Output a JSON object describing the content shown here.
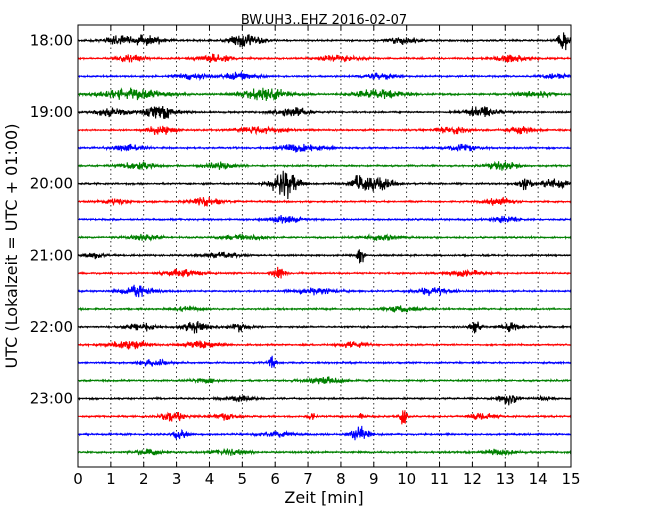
{
  "chart_data": {
    "type": "line",
    "title": "BW.UH3..EHZ 2016-02-07",
    "xlabel": "Zeit  [min]",
    "ylabel": "UTC (Lokalzeit = UTC + 01:00)",
    "xlim": [
      0,
      15
    ],
    "x_ticks": [
      "0",
      "1",
      "2",
      "3",
      "4",
      "5",
      "6",
      "7",
      "8",
      "9",
      "10",
      "11",
      "12",
      "13",
      "14",
      "15"
    ],
    "y_tick_labels": [
      {
        "row": 0,
        "label": "18:00"
      },
      {
        "row": 4,
        "label": "19:00"
      },
      {
        "row": 8,
        "label": "20:00"
      },
      {
        "row": 12,
        "label": "21:00"
      },
      {
        "row": 16,
        "label": "22:00"
      },
      {
        "row": 20,
        "label": "23:00"
      }
    ],
    "grid": "vertical dotted",
    "trace_minutes": 15,
    "colors": [
      "#000000",
      "#ff0000",
      "#0000ff",
      "#008000"
    ],
    "series": [
      {
        "start": "18:00",
        "color_index": 0,
        "bursts": [
          [
            1.2,
            0.8,
            0.4
          ],
          [
            2.1,
            1.0,
            0.5
          ],
          [
            5.1,
            1.2,
            0.5
          ],
          [
            9.9,
            0.8,
            0.4
          ],
          [
            14.8,
            1.8,
            0.2
          ]
        ]
      },
      {
        "start": "18:15",
        "color_index": 1,
        "bursts": [
          [
            1.6,
            0.8,
            0.4
          ],
          [
            4.2,
            0.7,
            0.5
          ],
          [
            7.9,
            0.6,
            0.6
          ],
          [
            13.2,
            0.7,
            0.5
          ]
        ]
      },
      {
        "start": "18:30",
        "color_index": 2,
        "bursts": [
          [
            3.5,
            0.6,
            0.6
          ],
          [
            4.9,
            0.7,
            0.5
          ],
          [
            9.2,
            0.6,
            0.5
          ],
          [
            14.5,
            0.5,
            0.4
          ]
        ]
      },
      {
        "start": "18:45",
        "color_index": 3,
        "bursts": [
          [
            1.7,
            1.0,
            1.0
          ],
          [
            5.7,
            1.2,
            0.7
          ],
          [
            9.1,
            0.8,
            0.8
          ],
          [
            13.9,
            0.6,
            0.5
          ]
        ]
      },
      {
        "start": "19:00",
        "color_index": 0,
        "bursts": [
          [
            1.0,
            0.8,
            0.5
          ],
          [
            2.5,
            1.2,
            0.5
          ],
          [
            6.5,
            1.0,
            0.5
          ],
          [
            12.3,
            1.0,
            0.5
          ]
        ]
      },
      {
        "start": "19:15",
        "color_index": 1,
        "bursts": [
          [
            2.5,
            1.0,
            0.4
          ],
          [
            5.6,
            0.6,
            0.8
          ],
          [
            11.4,
            0.7,
            0.5
          ],
          [
            13.5,
            0.6,
            0.4
          ]
        ]
      },
      {
        "start": "19:30",
        "color_index": 2,
        "bursts": [
          [
            1.5,
            0.6,
            0.5
          ],
          [
            6.8,
            0.8,
            0.7
          ],
          [
            11.7,
            0.7,
            0.5
          ]
        ]
      },
      {
        "start": "19:45",
        "color_index": 3,
        "bursts": [
          [
            1.8,
            0.7,
            0.5
          ],
          [
            4.3,
            0.6,
            0.5
          ],
          [
            12.9,
            0.8,
            0.5
          ]
        ]
      },
      {
        "start": "20:00",
        "color_index": 0,
        "bursts": [
          [
            6.3,
            2.6,
            0.4
          ],
          [
            8.5,
            1.3,
            0.2
          ],
          [
            9.1,
            1.3,
            0.5
          ],
          [
            13.6,
            1.3,
            0.2
          ],
          [
            14.5,
            0.9,
            0.4
          ]
        ]
      },
      {
        "start": "20:15",
        "color_index": 1,
        "bursts": [
          [
            1.1,
            0.5,
            0.4
          ],
          [
            3.9,
            0.8,
            0.5
          ],
          [
            12.8,
            0.8,
            0.4
          ]
        ]
      },
      {
        "start": "20:30",
        "color_index": 2,
        "bursts": [
          [
            6.3,
            0.7,
            0.5
          ],
          [
            13.0,
            0.6,
            0.4
          ]
        ]
      },
      {
        "start": "20:45",
        "color_index": 3,
        "bursts": [
          [
            2.0,
            0.5,
            0.5
          ],
          [
            5.0,
            0.5,
            0.6
          ],
          [
            9.2,
            0.5,
            0.6
          ]
        ]
      },
      {
        "start": "21:00",
        "color_index": 0,
        "bursts": [
          [
            0.5,
            0.6,
            0.3
          ],
          [
            4.4,
            0.5,
            0.5
          ],
          [
            8.6,
            1.8,
            0.1
          ]
        ]
      },
      {
        "start": "21:15",
        "color_index": 1,
        "bursts": [
          [
            3.2,
            0.7,
            0.6
          ],
          [
            6.1,
            1.0,
            0.2
          ],
          [
            11.8,
            0.6,
            0.5
          ]
        ]
      },
      {
        "start": "21:30",
        "color_index": 2,
        "bursts": [
          [
            1.8,
            1.0,
            0.5
          ],
          [
            7.2,
            0.6,
            0.6
          ],
          [
            10.8,
            0.8,
            0.5
          ]
        ]
      },
      {
        "start": "21:45",
        "color_index": 3,
        "bursts": [
          [
            3.3,
            0.5,
            0.4
          ],
          [
            9.8,
            0.5,
            0.5
          ]
        ]
      },
      {
        "start": "22:00",
        "color_index": 0,
        "bursts": [
          [
            1.9,
            1.0,
            0.4
          ],
          [
            3.6,
            1.0,
            0.4
          ],
          [
            4.9,
            0.8,
            0.3
          ],
          [
            12.1,
            1.0,
            0.2
          ],
          [
            13.1,
            0.8,
            0.3
          ]
        ]
      },
      {
        "start": "22:15",
        "color_index": 1,
        "bursts": [
          [
            1.5,
            0.8,
            0.6
          ],
          [
            3.8,
            0.7,
            0.5
          ],
          [
            8.4,
            0.6,
            0.4
          ]
        ]
      },
      {
        "start": "22:30",
        "color_index": 2,
        "bursts": [
          [
            2.3,
            0.6,
            0.5
          ],
          [
            5.9,
            1.6,
            0.1
          ]
        ]
      },
      {
        "start": "22:45",
        "color_index": 3,
        "bursts": [
          [
            7.5,
            0.6,
            0.6
          ],
          [
            3.9,
            0.4,
            0.4
          ]
        ]
      },
      {
        "start": "23:00",
        "color_index": 0,
        "bursts": [
          [
            4.9,
            0.6,
            0.4
          ],
          [
            13.1,
            1.2,
            0.3
          ],
          [
            14.2,
            0.6,
            0.2
          ]
        ]
      },
      {
        "start": "23:15",
        "color_index": 1,
        "bursts": [
          [
            2.9,
            0.9,
            0.4
          ],
          [
            4.4,
            0.6,
            0.4
          ],
          [
            7.1,
            0.9,
            0.1
          ],
          [
            8.6,
            0.6,
            0.1
          ],
          [
            9.9,
            1.7,
            0.1
          ],
          [
            12.3,
            0.6,
            0.4
          ]
        ]
      },
      {
        "start": "23:30",
        "color_index": 2,
        "bursts": [
          [
            3.1,
            1.0,
            0.2
          ],
          [
            8.6,
            1.5,
            0.3
          ],
          [
            6.0,
            0.5,
            0.5
          ]
        ]
      },
      {
        "start": "23:45",
        "color_index": 3,
        "bursts": [
          [
            2.1,
            0.5,
            0.5
          ],
          [
            4.6,
            0.6,
            0.5
          ],
          [
            12.8,
            0.5,
            0.5
          ]
        ]
      }
    ]
  }
}
